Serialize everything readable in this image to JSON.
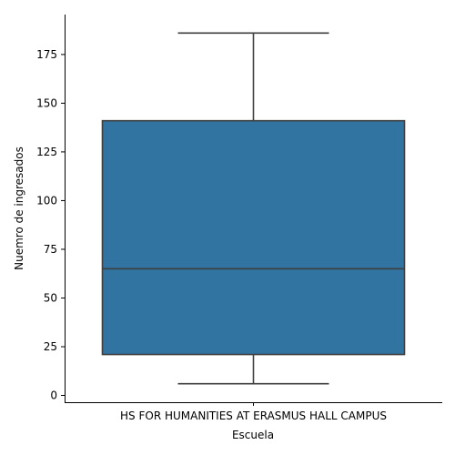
{
  "chart_data": {
    "type": "box",
    "categories": [
      "HS FOR HUMANITIES AT ERASMUS HALL CAMPUS"
    ],
    "boxes": [
      {
        "category": "HS FOR HUMANITIES AT ERASMUS HALL CAMPUS",
        "whisker_low": 6,
        "q1": 21,
        "median": 65,
        "q3": 141,
        "whisker_high": 186
      }
    ],
    "xlabel": "Escuela",
    "ylabel": "Nuemro de ingresados",
    "yticks": [
      0,
      25,
      50,
      75,
      100,
      125,
      150,
      175
    ],
    "ylim": [
      -3.5,
      195.5
    ],
    "grid": false,
    "colors": {
      "box_fill": "#3274a1",
      "lines": "#3f3f3f",
      "axes": "#000000"
    }
  }
}
